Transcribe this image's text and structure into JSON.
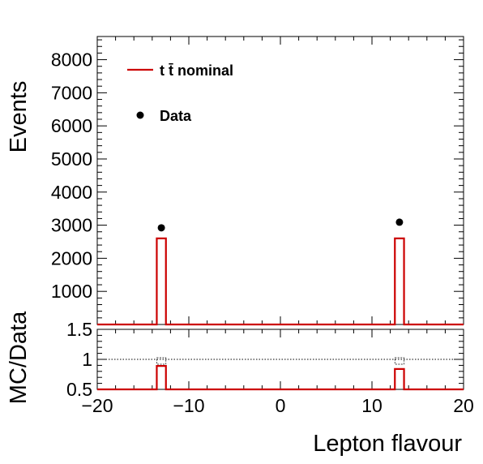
{
  "chart_data": [
    {
      "type": "bar",
      "panel": "main",
      "xlabel": "Lepton flavour",
      "ylabel": "Events",
      "xlim": [
        -20,
        20
      ],
      "ylim": [
        0,
        8700
      ],
      "bin_width": 1,
      "x_ticks": [
        -20,
        -10,
        0,
        10,
        20
      ],
      "x_tick_labels": [
        "−20",
        "−10",
        "0",
        "10",
        "20"
      ],
      "y_ticks": [
        1000,
        2000,
        3000,
        4000,
        5000,
        6000,
        7000,
        8000
      ],
      "y_tick_labels": [
        "1000",
        "2000",
        "3000",
        "4000",
        "5000",
        "6000",
        "7000",
        "8000"
      ],
      "legend_position": "top-left",
      "series": [
        {
          "name": "t t̄ nominal",
          "kind": "histogram",
          "color": "#cc0000",
          "x": [
            -13,
            13
          ],
          "values": [
            2600,
            2600
          ]
        },
        {
          "name": "Data",
          "kind": "points",
          "color": "#000000",
          "x": [
            -13,
            13
          ],
          "values": [
            2920,
            3090
          ]
        }
      ]
    },
    {
      "type": "bar",
      "panel": "ratio",
      "ylabel": "MC/Data",
      "xlim": [
        -20,
        20
      ],
      "ylim": [
        0.5,
        1.5
      ],
      "bin_width": 1,
      "y_ticks": [
        0.5,
        1,
        1.5
      ],
      "y_tick_labels": [
        "0.5",
        "1",
        "1.5"
      ],
      "reference_line": 1,
      "series": [
        {
          "kind": "ratio",
          "color": "#cc0000",
          "x": [
            -13,
            13
          ],
          "values": [
            0.89,
            0.84
          ]
        }
      ]
    }
  ]
}
